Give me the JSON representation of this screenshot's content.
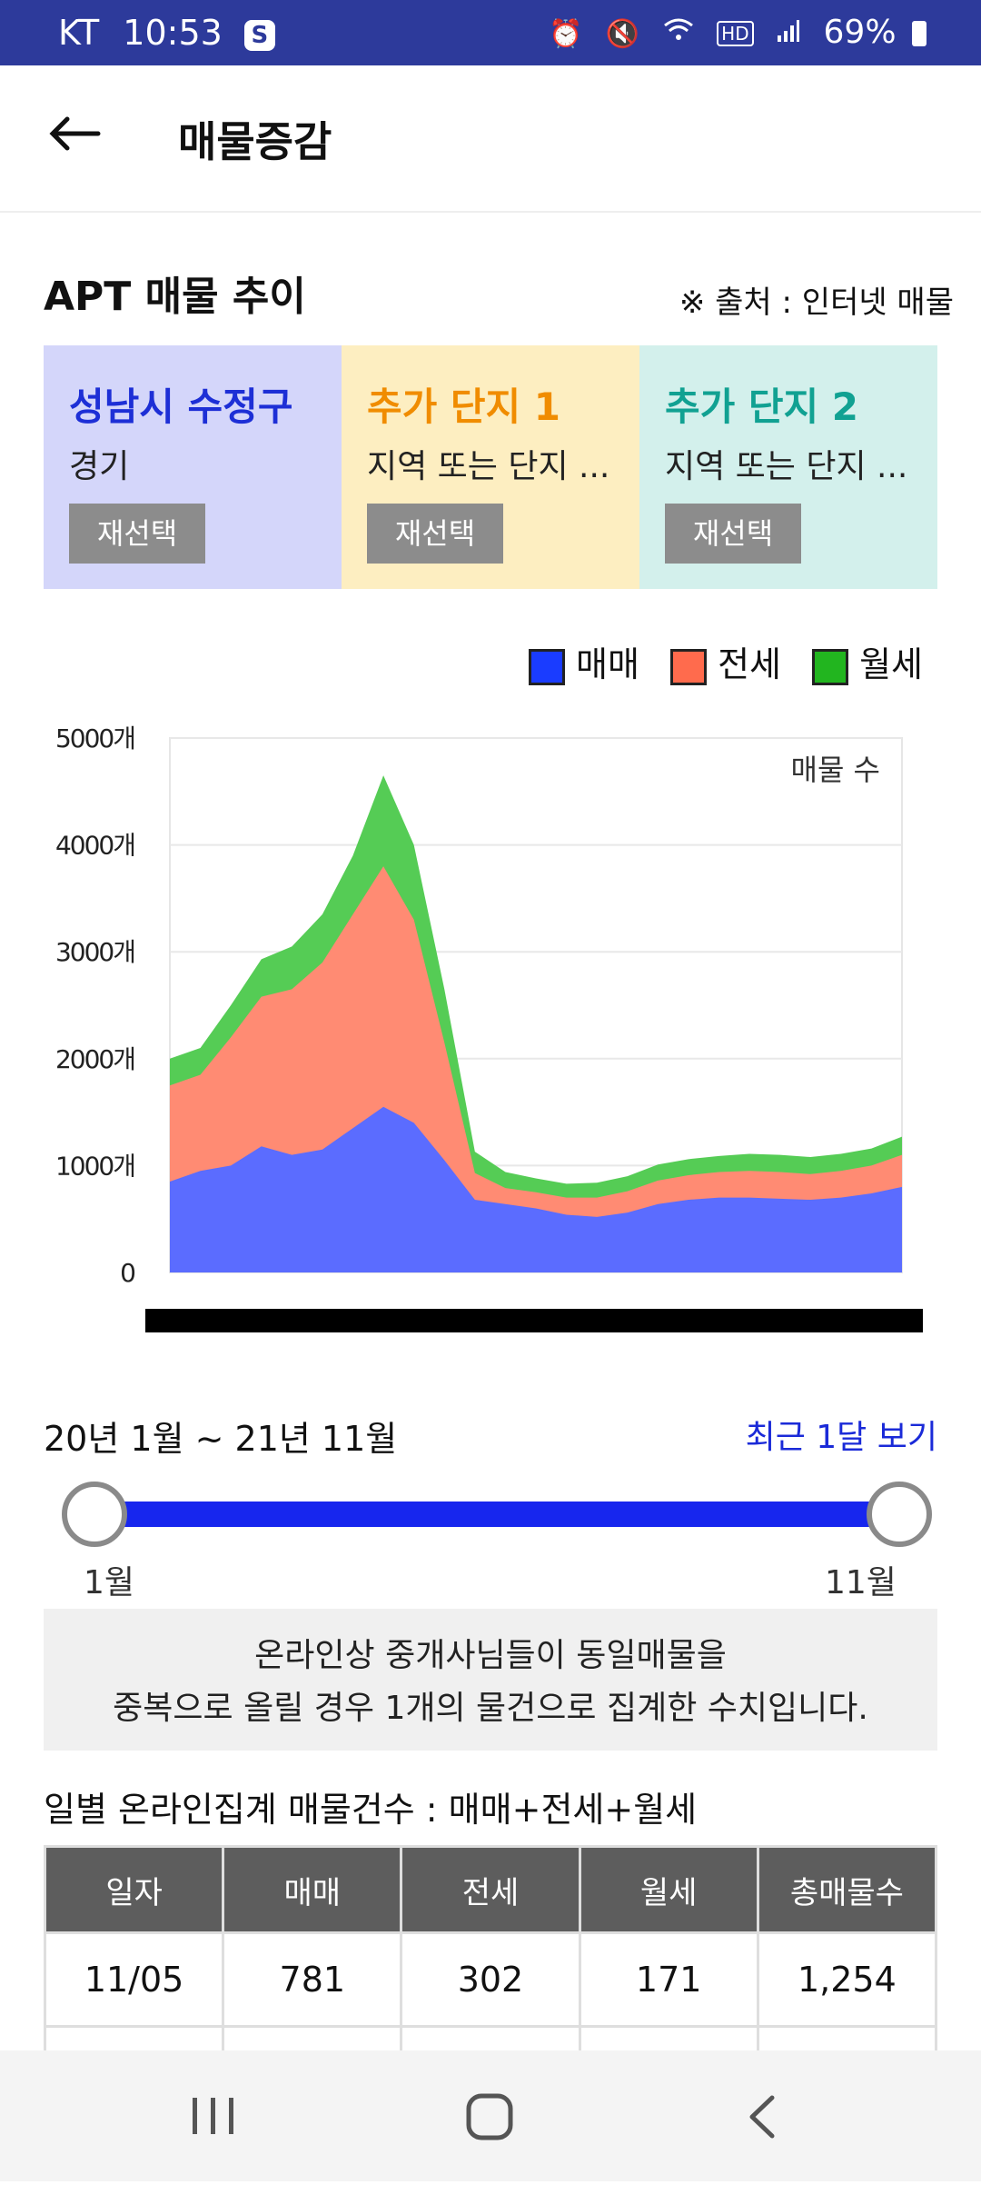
{
  "status_bar": {
    "carrier": "KT",
    "time": "10:53",
    "badge": "S",
    "battery": "69%"
  },
  "header": {
    "title": "매물증감"
  },
  "section": {
    "title": "APT 매물 추이",
    "source": "※ 출처 : 인터넷 매물"
  },
  "cards": [
    {
      "name": "성남시 수정구",
      "sub": "경기",
      "button": "재선택",
      "bg": "#d4d6fa",
      "name_color": "#1d2fd6"
    },
    {
      "name": "추가 단지 1",
      "sub": "지역 또는 단지 ...",
      "button": "재선택",
      "bg": "#fdeec1",
      "name_color": "#f08c00"
    },
    {
      "name": "추가 단지 2",
      "sub": "지역 또는 단지 ...",
      "button": "재선택",
      "bg": "#d3f0ec",
      "name_color": "#11a192"
    }
  ],
  "legend": [
    {
      "label": "매매",
      "color": "#1a3cff"
    },
    {
      "label": "전세",
      "color": "#ff6b4d"
    },
    {
      "label": "월세",
      "color": "#22b51f"
    }
  ],
  "chart_data": {
    "type": "area",
    "stacked": true,
    "inner_label": "매물 수",
    "ylim": [
      0,
      5000
    ],
    "y_ticks": [
      "0",
      "1000개",
      "2000개",
      "3000개",
      "4000개",
      "5000개"
    ],
    "grid": true,
    "series": [
      {
        "name": "매매",
        "color": "#5b6cff",
        "values": [
          850,
          950,
          1000,
          1180,
          1100,
          1150,
          1350,
          1550,
          1400,
          1050,
          680,
          640,
          600,
          540,
          520,
          560,
          640,
          680,
          700,
          700,
          690,
          680,
          700,
          740,
          800
        ]
      },
      {
        "name": "전세",
        "color": "#ff8b73",
        "values": [
          900,
          900,
          1200,
          1400,
          1550,
          1750,
          2000,
          2250,
          1900,
          1100,
          250,
          150,
          150,
          160,
          180,
          200,
          220,
          230,
          240,
          250,
          250,
          240,
          250,
          260,
          300
        ]
      },
      {
        "name": "월세",
        "color": "#55cc55",
        "values": [
          250,
          250,
          300,
          350,
          400,
          450,
          550,
          850,
          700,
          500,
          200,
          150,
          130,
          130,
          140,
          140,
          150,
          150,
          150,
          160,
          160,
          160,
          160,
          160,
          170
        ]
      }
    ]
  },
  "range": {
    "label": "20년 1월 ~ 21년 11월",
    "recent_link": "최근 1달 보기",
    "min_label": "1월",
    "max_label": "11월"
  },
  "notice": {
    "line1": "온라인상 중개사님들이 동일매물을",
    "line2": "중복으로 올릴 경우 1개의 물건으로 집계한 수치입니다."
  },
  "table": {
    "title": "일별 온라인집계 매물건수 : 매매+전세+월세",
    "headers": [
      "일자",
      "매매",
      "전세",
      "월세",
      "총매물수"
    ],
    "rows": [
      [
        "11/05",
        "781",
        "302",
        "171",
        "1,254"
      ]
    ]
  }
}
